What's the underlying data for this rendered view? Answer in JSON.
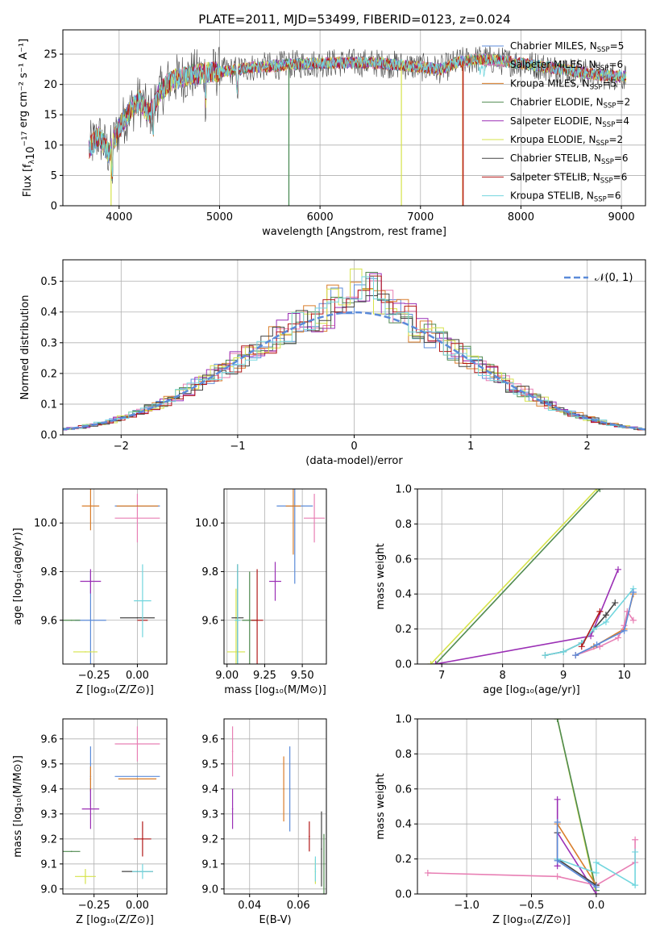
{
  "figure": {
    "title": "PLATE=2011, MJD=53499, FIBERID=0123, z=0.024"
  },
  "legend_spectrum": [
    {
      "label": "Chabrier MILES, N",
      "sub": "SSP",
      "suffix": "=5",
      "color": "#5b8bd9"
    },
    {
      "label": "Salpeter MILES, N",
      "sub": "SSP",
      "suffix": "=6",
      "color": "#e87fb4"
    },
    {
      "label": "Kroupa MILES, N",
      "sub": "SSP",
      "suffix": "=5",
      "color": "#d97d2a"
    },
    {
      "label": "Chabrier ELODIE, N",
      "sub": "SSP",
      "suffix": "=2",
      "color": "#4f8a4f"
    },
    {
      "label": "Salpeter ELODIE, N",
      "sub": "SSP",
      "suffix": "=4",
      "color": "#9b2fb5"
    },
    {
      "label": "Kroupa ELODIE, N",
      "sub": "SSP",
      "suffix": "=2",
      "color": "#d6e34a"
    },
    {
      "label": "Chabrier STELIB, N",
      "sub": "SSP",
      "suffix": "=6",
      "color": "#444444"
    },
    {
      "label": "Salpeter STELIB, N",
      "sub": "SSP",
      "suffix": "=6",
      "color": "#b21818"
    },
    {
      "label": "Kroupa STELIB, N",
      "sub": "SSP",
      "suffix": "=6",
      "color": "#72d6de"
    }
  ],
  "chart_data": [
    {
      "id": "spectrum",
      "type": "line",
      "xlabel": "wavelength [Angstrom, rest frame]",
      "ylabel_main": "Flux [f",
      "ylabel_sub": "λ",
      "ylabel_mid": "10",
      "ylabel_sup": "−17",
      "ylabel_end": " erg cm⁻² s⁻¹ A⁻¹]",
      "xlim": [
        3440,
        9240
      ],
      "ylim": [
        0,
        29
      ],
      "xticks": [
        4000,
        5000,
        6000,
        7000,
        8000,
        9000
      ],
      "yticks": [
        0,
        5,
        10,
        15,
        20,
        25
      ],
      "continuum": {
        "x": [
          3700,
          3800,
          3900,
          4000,
          4100,
          4200,
          4300,
          4400,
          4500,
          4700,
          4900,
          5100,
          5300,
          5500,
          5700,
          6000,
          6300,
          6600,
          6900,
          7200,
          7400,
          7600,
          8000,
          8400,
          8800,
          9000
        ],
        "y": [
          9.5,
          11.5,
          8.5,
          13.0,
          15.5,
          17.5,
          15.0,
          18.5,
          20.5,
          21.5,
          22.0,
          22.2,
          22.8,
          23.0,
          23.3,
          23.5,
          23.6,
          23.5,
          23.0,
          22.5,
          23.8,
          24.2,
          23.5,
          22.5,
          21.5,
          21.3
        ]
      }
    },
    {
      "id": "residuals",
      "type": "histogram",
      "xlabel": "(data-model)/error",
      "ylabel": "Normed distribution",
      "xlim": [
        -2.5,
        2.5
      ],
      "ylim": [
        0,
        0.57
      ],
      "xticks": [
        -2,
        -1,
        0,
        1,
        2
      ],
      "yticks": [
        0.0,
        0.1,
        0.2,
        0.3,
        0.4,
        0.5
      ],
      "legend": "𝒩(0, 1)"
    },
    {
      "id": "age_vs_Z",
      "type": "scatter",
      "xlabel": "Z [log₁₀(Z/Z⊙)]",
      "ylabel": "age  [log₁₀(age/yr)]",
      "xlim": [
        -0.43,
        0.17
      ],
      "ylim": [
        9.42,
        10.14
      ],
      "xticks": [
        -0.25,
        0.0
      ],
      "yticks": [
        9.6,
        9.8,
        10.0
      ],
      "points": [
        {
          "x": -0.27,
          "y": 9.6,
          "ex": 0.09,
          "ey": 0.2,
          "s": 0
        },
        {
          "x": 0.0,
          "y": 10.02,
          "ex": 0.13,
          "ey": 0.1,
          "s": 1
        },
        {
          "x": -0.27,
          "y": 10.07,
          "ex": 0.05,
          "ey": 0.1,
          "s": 2
        },
        {
          "x": -0.38,
          "y": 9.6,
          "ex": 0.05,
          "ey": 0.0,
          "s": 3
        },
        {
          "x": -0.27,
          "y": 9.76,
          "ex": 0.06,
          "ey": 0.05,
          "s": 4
        },
        {
          "x": -0.3,
          "y": 9.47,
          "ex": 0.07,
          "ey": 0.0,
          "s": 5
        },
        {
          "x": 0.0,
          "y": 9.61,
          "ex": 0.1,
          "ey": 0.0,
          "s": 6
        },
        {
          "x": 0.03,
          "y": 9.6,
          "ex": 0.03,
          "ey": 0.0,
          "s": 7
        },
        {
          "x": 0.03,
          "y": 9.68,
          "ex": 0.05,
          "ey": 0.15,
          "s": 8
        },
        {
          "x": 0.0,
          "y": 10.07,
          "ex": 0.13,
          "ey": 0.0,
          "s": 0
        },
        {
          "x": 0.0,
          "y": 10.07,
          "ex": 0.12,
          "ey": 0.0,
          "s": 2
        }
      ]
    },
    {
      "id": "age_vs_mass",
      "type": "scatter",
      "xlabel": "mass [log₁₀(M/M⊙)]",
      "ylabel": "",
      "xlim": [
        8.98,
        9.66
      ],
      "ylim": [
        9.42,
        10.14
      ],
      "xticks": [
        9.0,
        9.25,
        9.5
      ],
      "yticks": [
        9.6,
        9.8,
        10.0
      ],
      "points": [
        {
          "x": 9.45,
          "y": 10.07,
          "ex": 0.12,
          "ey": 0.32,
          "s": 0
        },
        {
          "x": 9.58,
          "y": 10.02,
          "ex": 0.07,
          "ey": 0.1,
          "s": 1
        },
        {
          "x": 9.44,
          "y": 10.07,
          "ex": 0.05,
          "ey": 0.2,
          "s": 2
        },
        {
          "x": 9.15,
          "y": 9.6,
          "ex": 0.05,
          "ey": 0.2,
          "s": 3
        },
        {
          "x": 9.32,
          "y": 9.76,
          "ex": 0.04,
          "ey": 0.08,
          "s": 4
        },
        {
          "x": 9.06,
          "y": 9.47,
          "ex": 0.06,
          "ey": 0.26,
          "s": 5
        },
        {
          "x": 9.07,
          "y": 9.61,
          "ex": 0.04,
          "ey": 0.22,
          "s": 6
        },
        {
          "x": 9.2,
          "y": 9.6,
          "ex": 0.04,
          "ey": 0.21,
          "s": 7
        },
        {
          "x": 9.07,
          "y": 9.6,
          "ex": 0.02,
          "ey": 0.23,
          "s": 8
        }
      ]
    },
    {
      "id": "weight_vs_age",
      "type": "line",
      "xlabel": "age  [log₁₀(age/yr)]",
      "ylabel": "mass weight",
      "xlim": [
        6.6,
        10.35
      ],
      "ylim": [
        0,
        1.0
      ],
      "xticks": [
        7,
        8,
        9,
        10
      ],
      "yticks": [
        0.0,
        0.2,
        0.4,
        0.6,
        0.8,
        1.0
      ],
      "series": [
        {
          "s": 5,
          "x": [
            6.82,
            9.55
          ],
          "y": [
            0.0,
            1.0
          ]
        },
        {
          "s": 3,
          "x": [
            6.9,
            9.6
          ],
          "y": [
            0.0,
            1.0
          ]
        },
        {
          "s": 4,
          "x": [
            6.9,
            9.45,
            9.9
          ],
          "y": [
            0.0,
            0.16,
            0.54
          ]
        },
        {
          "s": 6,
          "x": [
            8.7,
            9.0,
            9.3,
            9.5,
            9.7,
            9.85
          ],
          "y": [
            0.05,
            0.07,
            0.12,
            0.2,
            0.28,
            0.35
          ]
        },
        {
          "s": 8,
          "x": [
            8.7,
            9.0,
            9.3,
            9.5,
            9.7,
            10.15
          ],
          "y": [
            0.05,
            0.07,
            0.12,
            0.2,
            0.24,
            0.43
          ]
        },
        {
          "s": 2,
          "x": [
            9.2,
            9.5,
            10.0,
            10.15
          ],
          "y": [
            0.05,
            0.1,
            0.2,
            0.4
          ]
        },
        {
          "s": 1,
          "x": [
            9.2,
            9.6,
            9.9,
            10.0,
            10.05,
            10.15
          ],
          "y": [
            0.05,
            0.1,
            0.15,
            0.22,
            0.3,
            0.25
          ]
        },
        {
          "s": 0,
          "x": [
            9.2,
            9.55,
            10.0,
            10.15
          ],
          "y": [
            0.05,
            0.11,
            0.19,
            0.41
          ]
        },
        {
          "s": 7,
          "x": [
            9.3,
            9.6
          ],
          "y": [
            0.1,
            0.3
          ]
        }
      ]
    },
    {
      "id": "mass_vs_Z",
      "type": "scatter",
      "xlabel": "Z [log₁₀(Z/Z⊙)]",
      "ylabel": "mass [log₁₀(M/M⊙)]",
      "xlim": [
        -0.43,
        0.17
      ],
      "ylim": [
        8.98,
        9.68
      ],
      "xticks": [
        -0.25,
        0.0
      ],
      "yticks": [
        9.0,
        9.1,
        9.2,
        9.3,
        9.4,
        9.5,
        9.6
      ],
      "points": [
        {
          "x": -0.27,
          "y": 9.45,
          "ex": 0.0,
          "ey": 0.12,
          "s": 0
        },
        {
          "x": 0.0,
          "y": 9.58,
          "ex": 0.13,
          "ey": 0.07,
          "s": 1
        },
        {
          "x": -0.27,
          "y": 9.44,
          "ex": 0.0,
          "ey": 0.05,
          "s": 2
        },
        {
          "x": -0.38,
          "y": 9.15,
          "ex": 0.05,
          "ey": 0.0,
          "s": 3
        },
        {
          "x": -0.27,
          "y": 9.32,
          "ex": 0.05,
          "ey": 0.08,
          "s": 4
        },
        {
          "x": -0.3,
          "y": 9.05,
          "ex": 0.06,
          "ey": 0.03,
          "s": 5
        },
        {
          "x": 0.0,
          "y": 9.07,
          "ex": 0.09,
          "ey": 0.0,
          "s": 6
        },
        {
          "x": 0.03,
          "y": 9.2,
          "ex": 0.05,
          "ey": 0.07,
          "s": 7
        },
        {
          "x": 0.03,
          "y": 9.07,
          "ex": 0.06,
          "ey": 0.03,
          "s": 8
        },
        {
          "x": 0.0,
          "y": 9.45,
          "ex": 0.13,
          "ey": 0.0,
          "s": 0
        },
        {
          "x": 0.0,
          "y": 9.44,
          "ex": 0.11,
          "ey": 0.0,
          "s": 2
        }
      ]
    },
    {
      "id": "mass_vs_ebv",
      "type": "scatter",
      "xlabel": "E(B-V)",
      "ylabel": "",
      "xlim": [
        0.0295,
        0.0715
      ],
      "ylim": [
        8.98,
        9.68
      ],
      "xticks": [
        0.04,
        0.06
      ],
      "yticks": [
        9.0,
        9.1,
        9.2,
        9.3,
        9.4,
        9.5,
        9.6
      ],
      "points": [
        {
          "x": 0.0565,
          "y": 9.4,
          "ex": 0.0,
          "ey": 0.17,
          "s": 0
        },
        {
          "x": 0.033,
          "y": 9.55,
          "ex": 0.0,
          "ey": 0.1,
          "s": 1
        },
        {
          "x": 0.054,
          "y": 9.4,
          "ex": 0.0,
          "ey": 0.13,
          "s": 2
        },
        {
          "x": 0.0705,
          "y": 9.1,
          "ex": 0.0,
          "ey": 0.12,
          "s": 3
        },
        {
          "x": 0.033,
          "y": 9.32,
          "ex": 0.0,
          "ey": 0.08,
          "s": 4
        },
        {
          "x": 0.067,
          "y": 9.07,
          "ex": 0.0,
          "ey": 0.05,
          "s": 5
        },
        {
          "x": 0.0695,
          "y": 9.16,
          "ex": 0.0,
          "ey": 0.15,
          "s": 6
        },
        {
          "x": 0.0645,
          "y": 9.21,
          "ex": 0.0,
          "ey": 0.06,
          "s": 7
        },
        {
          "x": 0.067,
          "y": 9.08,
          "ex": 0.0,
          "ey": 0.05,
          "s": 8
        }
      ]
    },
    {
      "id": "weight_vs_Z",
      "type": "line",
      "xlabel": "Z [log₁₀(Z/Z⊙)]",
      "ylabel": "mass weight",
      "xlim": [
        -1.38,
        0.38
      ],
      "ylim": [
        0,
        1.0
      ],
      "xticks": [
        -1.0,
        -0.5,
        0.0
      ],
      "yticks": [
        0.0,
        0.2,
        0.4,
        0.6,
        0.8,
        1.0
      ],
      "series": [
        {
          "s": 5,
          "x": [
            -0.3,
            0.0
          ],
          "y": [
            1.0,
            0.0
          ]
        },
        {
          "s": 3,
          "x": [
            -0.3,
            0.0
          ],
          "y": [
            1.0,
            0.02
          ]
        },
        {
          "s": 4,
          "x": [
            -0.3,
            -0.3,
            -0.3,
            0.0
          ],
          "y": [
            0.54,
            0.16,
            0.35,
            0.0
          ]
        },
        {
          "s": 1,
          "x": [
            -1.3,
            -0.3,
            0.0,
            0.3,
            0.3
          ],
          "y": [
            0.12,
            0.1,
            0.05,
            0.18,
            0.31
          ]
        },
        {
          "s": 2,
          "x": [
            -0.3,
            -0.3,
            0.0
          ],
          "y": [
            0.2,
            0.4,
            0.05
          ]
        },
        {
          "s": 6,
          "x": [
            -0.3,
            -0.3,
            0.0
          ],
          "y": [
            0.35,
            0.2,
            0.05
          ]
        },
        {
          "s": 8,
          "x": [
            -0.3,
            0.0,
            0.0,
            0.3,
            0.3
          ],
          "y": [
            0.2,
            0.12,
            0.18,
            0.05,
            0.24
          ]
        },
        {
          "s": 0,
          "x": [
            -0.3,
            -0.3,
            0.0
          ],
          "y": [
            0.41,
            0.19,
            0.04
          ]
        }
      ]
    }
  ]
}
